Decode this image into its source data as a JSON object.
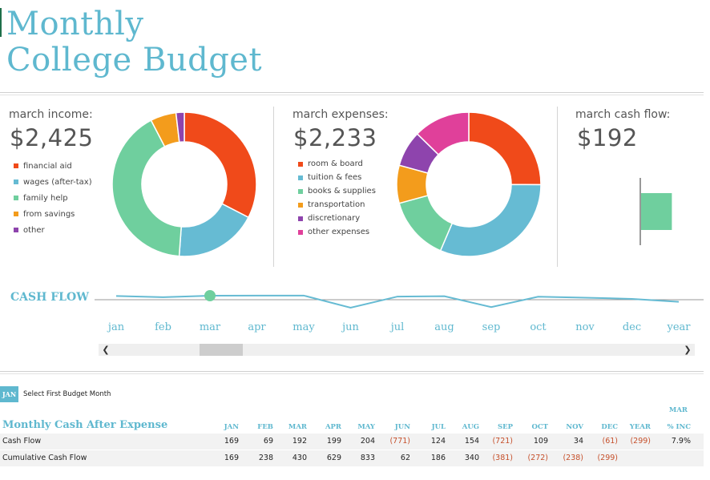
{
  "title": {
    "line1": "Monthly",
    "line2": "College Budget"
  },
  "income": {
    "label": "march income:",
    "amount": "$2,425",
    "items": [
      {
        "label": "financial aid",
        "value": 790,
        "color": "#f04a1a"
      },
      {
        "label": "wages (after-tax)",
        "value": 450,
        "color": "#66bbd3"
      },
      {
        "label": "family help",
        "value": 1000,
        "color": "#6fcf9e"
      },
      {
        "label": "from savings",
        "value": 140,
        "color": "#f39c1c"
      },
      {
        "label": "other",
        "value": 45,
        "color": "#8e44ad"
      }
    ]
  },
  "expenses": {
    "label": "march expenses:",
    "amount": "$2,233",
    "items": [
      {
        "label": "room & board",
        "value": 560,
        "color": "#f04a1a"
      },
      {
        "label": "tuition & fees",
        "value": 700,
        "color": "#66bbd3"
      },
      {
        "label": "books & supplies",
        "value": 320,
        "color": "#6fcf9e"
      },
      {
        "label": "transportation",
        "value": 190,
        "color": "#f39c1c"
      },
      {
        "label": "discretionary",
        "value": 180,
        "color": "#8e44ad"
      },
      {
        "label": "other expenses",
        "value": 283,
        "color": "#e0409a"
      }
    ]
  },
  "cashflow": {
    "label": "march cash flow:",
    "amount": "$192",
    "value": 192,
    "bar_color": "#6fcf9e"
  },
  "cash_flow_section": {
    "title": "CASH FLOW",
    "months": [
      "jan",
      "feb",
      "mar",
      "apr",
      "may",
      "jun",
      "jul",
      "aug",
      "sep",
      "oct",
      "nov",
      "dec",
      "year"
    ],
    "selected_index": 2,
    "line_color": "#66bbd3",
    "marker_color": "#6fcf9e"
  },
  "first_month": {
    "button": "JAN",
    "label": "Select First Budget Month"
  },
  "table": {
    "title": "Monthly Cash After Expense",
    "mar_header": "MAR",
    "headers": [
      "JAN",
      "FEB",
      "MAR",
      "APR",
      "MAY",
      "JUN",
      "JUL",
      "AUG",
      "SEP",
      "OCT",
      "NOV",
      "DEC",
      "YEAR",
      "% INC"
    ],
    "rows": [
      {
        "label": "Cash Flow",
        "cells": [
          "169",
          "69",
          "192",
          "199",
          "204",
          "(771)",
          "124",
          "154",
          "(721)",
          "109",
          "34",
          "(61)",
          "(299)",
          "7.9%"
        ]
      },
      {
        "label": "Cumulative Cash Flow",
        "cells": [
          "169",
          "238",
          "430",
          "629",
          "833",
          "62",
          "186",
          "340",
          "(381)",
          "(272)",
          "(238)",
          "(299)",
          "",
          ""
        ]
      }
    ]
  },
  "icons": {
    "scroll_left": "chevron-left-icon",
    "scroll_right": "chevron-right-icon"
  }
}
